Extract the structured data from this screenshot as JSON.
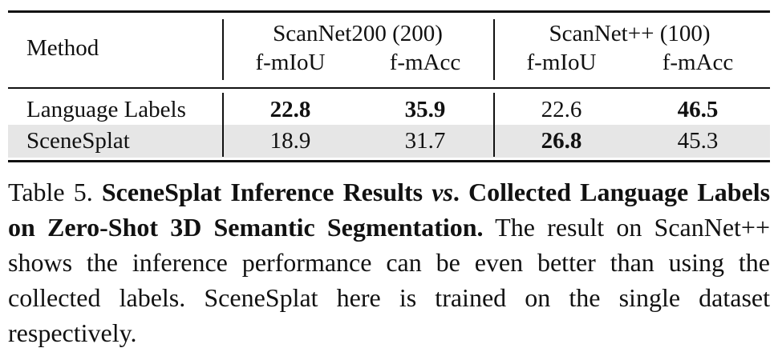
{
  "table": {
    "method_header": "Method",
    "groups": [
      {
        "name": "ScanNet200 (200)",
        "metrics": [
          "f-mIoU",
          "f-mAcc"
        ]
      },
      {
        "name": "ScanNet++ (100)",
        "metrics": [
          "f-mIoU",
          "f-mAcc"
        ]
      }
    ],
    "rows": [
      {
        "method": "Language Labels",
        "cells": [
          {
            "value": "22.8",
            "bold": true
          },
          {
            "value": "35.9",
            "bold": true
          },
          {
            "value": "22.6",
            "bold": false
          },
          {
            "value": "46.5",
            "bold": true
          }
        ]
      },
      {
        "method": "SceneSplat",
        "shaded": true,
        "cells": [
          {
            "value": "18.9",
            "bold": false
          },
          {
            "value": "31.7",
            "bold": false
          },
          {
            "value": "26.8",
            "bold": true
          },
          {
            "value": "45.3",
            "bold": false
          }
        ]
      }
    ]
  },
  "caption": {
    "label": "Table 5.",
    "title_part1": "SceneSplat Inference Results",
    "title_vs": "vs",
    "title_part2": ". Collected Language Labels on Zero-Shot 3D Semantic Segmentation.",
    "body": "The result on ScanNet++ shows the inference performance can be even better than using the collected labels. SceneSplat here is trained on the single dataset respectively."
  }
}
